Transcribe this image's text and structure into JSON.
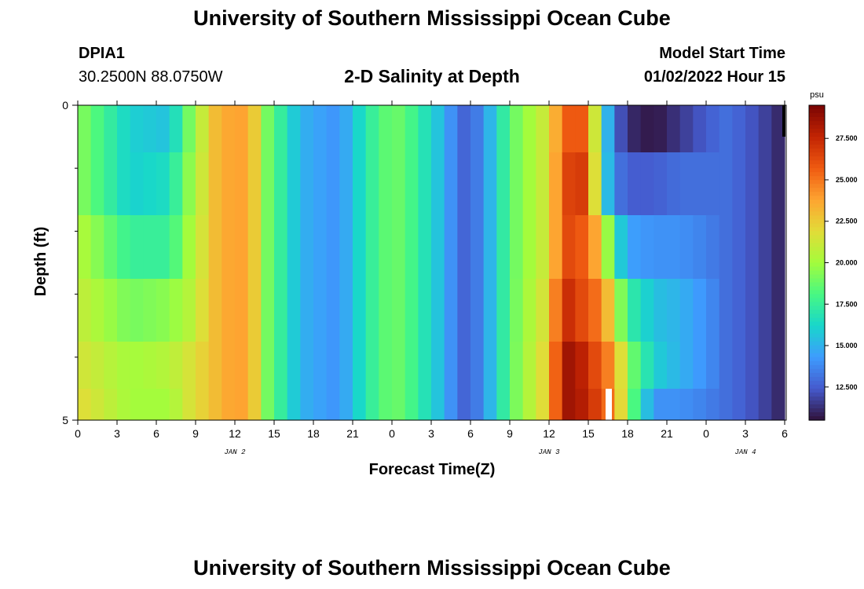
{
  "page": {
    "title": "University of Southern Mississippi Ocean Cube",
    "footer_title": "University of Southern Mississippi Ocean Cube"
  },
  "header": {
    "station": "DPIA1",
    "location": "30.2500N  88.0750W",
    "plot_title": "2-D Salinity at Depth",
    "model_label": "Model Start Time",
    "model_time": "01/02/2022 Hour 15"
  },
  "chart_data": {
    "type": "heatmap",
    "title": "2-D Salinity at Depth",
    "xlabel": "Forecast Time(Z)",
    "ylabel": "Depth (ft)",
    "x_tick_labels": [
      "0",
      "3",
      "6",
      "9",
      "12",
      "15",
      "18",
      "21",
      "0",
      "3",
      "6",
      "9",
      "12",
      "15",
      "18",
      "21",
      "0",
      "3",
      "6"
    ],
    "date_labels": [
      {
        "label": "JAN 2",
        "hour": 12
      },
      {
        "label": "JAN 3",
        "hour": 36
      },
      {
        "label": "JAN 4",
        "hour": 51
      }
    ],
    "x_range_hours": [
      0,
      54
    ],
    "y_range_ft": [
      0,
      5
    ],
    "y_tick_labels": [
      "0",
      "5"
    ],
    "depth_layers_ft": [
      0.25,
      1.25,
      2.25,
      3.25,
      4.25,
      4.75
    ],
    "colorbar": {
      "units": "psu",
      "min": 10.5,
      "max": 29.5,
      "tick_values": [
        12.5,
        15.0,
        17.5,
        20.0,
        22.5,
        25.0,
        27.5
      ],
      "tick_labels": [
        "12.500",
        "15.000",
        "17.500",
        "20.000",
        "22.500",
        "25.000",
        "27.500"
      ]
    },
    "time_hours": [
      0,
      4,
      7,
      8.5,
      10.5,
      12,
      13.2,
      14.5,
      17,
      20,
      22,
      24,
      25,
      28,
      29,
      30,
      32,
      33,
      36,
      37,
      38,
      39,
      40,
      41,
      42,
      44,
      46,
      48,
      49.5,
      51,
      53,
      54
    ],
    "salinity_by_layer": [
      [
        19.5,
        16.0,
        15.5,
        19.0,
        23.0,
        24.0,
        23.5,
        19.0,
        15.0,
        14.0,
        17.0,
        19.0,
        18.5,
        15.0,
        13.0,
        12.5,
        16.0,
        18.5,
        21.5,
        25.5,
        26.0,
        25.5,
        17.0,
        13.0,
        11.2,
        10.6,
        11.5,
        12.5,
        13.0,
        12.5,
        11.5,
        10.8
      ],
      [
        19.5,
        16.0,
        16.5,
        19.5,
        23.0,
        24.0,
        23.5,
        19.0,
        15.0,
        14.0,
        17.0,
        19.0,
        18.5,
        15.0,
        13.0,
        12.5,
        16.0,
        18.5,
        21.5,
        26.0,
        27.0,
        26.5,
        17.0,
        13.5,
        12.5,
        12.5,
        13.0,
        13.0,
        13.0,
        12.5,
        11.5,
        10.8
      ],
      [
        20.5,
        17.5,
        17.5,
        20.0,
        23.0,
        24.0,
        23.5,
        19.0,
        15.0,
        14.0,
        17.0,
        19.0,
        18.5,
        15.0,
        13.0,
        12.5,
        16.0,
        18.5,
        21.5,
        26.0,
        26.5,
        25.0,
        22.5,
        17.0,
        14.5,
        14.0,
        14.0,
        13.5,
        13.0,
        12.5,
        11.5,
        10.8
      ],
      [
        21.0,
        19.0,
        19.5,
        20.5,
        23.0,
        24.0,
        23.5,
        19.0,
        15.0,
        14.0,
        17.0,
        19.0,
        18.5,
        15.0,
        13.0,
        12.5,
        16.0,
        18.5,
        22.0,
        27.5,
        27.0,
        25.5,
        25.0,
        21.0,
        17.5,
        15.5,
        15.0,
        14.0,
        13.0,
        12.5,
        11.5,
        10.8
      ],
      [
        21.5,
        20.0,
        20.5,
        21.5,
        23.0,
        24.0,
        23.5,
        19.0,
        15.0,
        14.0,
        17.0,
        19.0,
        18.5,
        15.0,
        13.0,
        12.5,
        16.0,
        18.5,
        22.5,
        28.5,
        28.5,
        27.0,
        25.5,
        24.0,
        19.5,
        16.0,
        15.0,
        14.0,
        13.0,
        12.5,
        11.5,
        10.8
      ],
      [
        22.0,
        20.0,
        20.0,
        21.5,
        23.0,
        24.0,
        23.5,
        19.0,
        15.0,
        14.0,
        17.0,
        19.0,
        18.5,
        15.0,
        13.0,
        12.5,
        16.0,
        18.5,
        22.5,
        28.5,
        28.5,
        27.5,
        26.0,
        24.5,
        19.5,
        14.0,
        14.0,
        13.5,
        13.0,
        12.5,
        11.5,
        10.8
      ]
    ]
  }
}
